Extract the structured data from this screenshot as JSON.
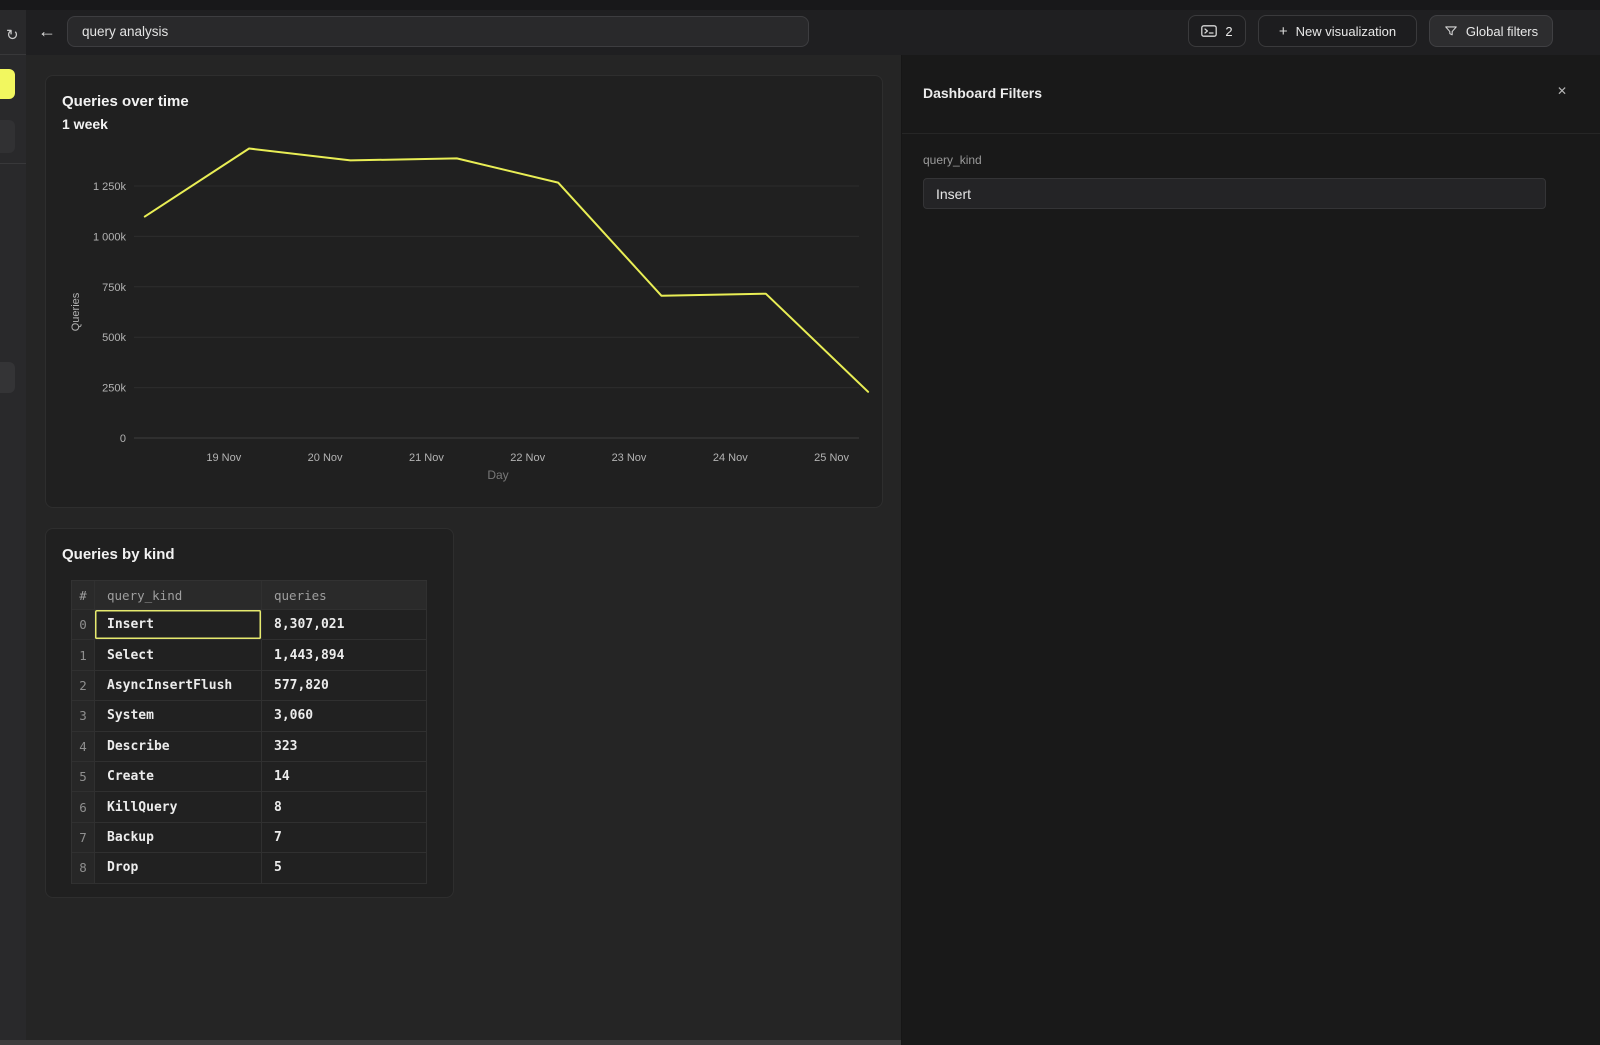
{
  "topbar": {
    "search_value": "query analysis",
    "console_button": {
      "icon": "terminal-window-icon",
      "count": "2"
    },
    "new_visualization_label": "New visualization",
    "global_filters_label": "Global filters"
  },
  "sidebar": {
    "refresh_icon": "↻"
  },
  "chart_card": {
    "title": "Queries over time",
    "subtitle": "1 week"
  },
  "chart_data": {
    "type": "line",
    "title": "Queries over time",
    "subtitle": "1 week",
    "xlabel": "Day",
    "ylabel": "Queries",
    "x_ticks": [
      {
        "label": "19 Nov",
        "day": 19
      },
      {
        "label": "20 Nov",
        "day": 20
      },
      {
        "label": "21 Nov",
        "day": 21
      },
      {
        "label": "22 Nov",
        "day": 22
      },
      {
        "label": "23 Nov",
        "day": 23
      },
      {
        "label": "24 Nov",
        "day": 24
      },
      {
        "label": "25 Nov",
        "day": 25
      }
    ],
    "y_ticks": [
      {
        "label": "1 250k",
        "value": 1250
      },
      {
        "label": "1 000k",
        "value": 1000
      },
      {
        "label": "750k",
        "value": 750
      },
      {
        "label": "500k",
        "value": 500
      },
      {
        "label": "250k",
        "value": 250
      },
      {
        "label": "0",
        "value": 0
      }
    ],
    "ylim": [
      0,
      1500
    ],
    "grid": "horizontal",
    "legend": "none",
    "line_color": "#e9ee55",
    "series": [
      {
        "name": "Queries",
        "points": [
          {
            "day": 18.22,
            "value_k": 1098
          },
          {
            "day": 19.25,
            "value_k": 1436
          },
          {
            "day": 20.25,
            "value_k": 1377
          },
          {
            "day": 21.3,
            "value_k": 1387
          },
          {
            "day": 22.3,
            "value_k": 1267
          },
          {
            "day": 23.32,
            "value_k": 706
          },
          {
            "day": 24.35,
            "value_k": 716
          },
          {
            "day": 25.36,
            "value_k": 229
          }
        ]
      }
    ]
  },
  "table_card": {
    "title": "Queries by kind",
    "columns": [
      "#",
      "query_kind",
      "queries"
    ],
    "rows": [
      {
        "idx": "0",
        "query_kind": "Insert",
        "queries": "8,307,021",
        "selected": true
      },
      {
        "idx": "1",
        "query_kind": "Select",
        "queries": "1,443,894",
        "selected": false
      },
      {
        "idx": "2",
        "query_kind": "AsyncInsertFlush",
        "queries": "577,820",
        "selected": false
      },
      {
        "idx": "3",
        "query_kind": "System",
        "queries": "3,060",
        "selected": false
      },
      {
        "idx": "4",
        "query_kind": "Describe",
        "queries": "323",
        "selected": false
      },
      {
        "idx": "5",
        "query_kind": "Create",
        "queries": "14",
        "selected": false
      },
      {
        "idx": "6",
        "query_kind": "KillQuery",
        "queries": "8",
        "selected": false
      },
      {
        "idx": "7",
        "query_kind": "Backup",
        "queries": "7",
        "selected": false
      },
      {
        "idx": "8",
        "query_kind": "Drop",
        "queries": "5",
        "selected": false
      }
    ]
  },
  "filters_panel": {
    "title": "Dashboard Filters",
    "close_icon": "✕",
    "field_label": "query_kind",
    "field_value": "Insert"
  },
  "colors": {
    "accent_yellow": "#f2f75f",
    "line_yellow": "#e9ee55",
    "selection_border": "#e6ea6e",
    "card_bg": "#202020",
    "panel_bg": "#191919"
  }
}
